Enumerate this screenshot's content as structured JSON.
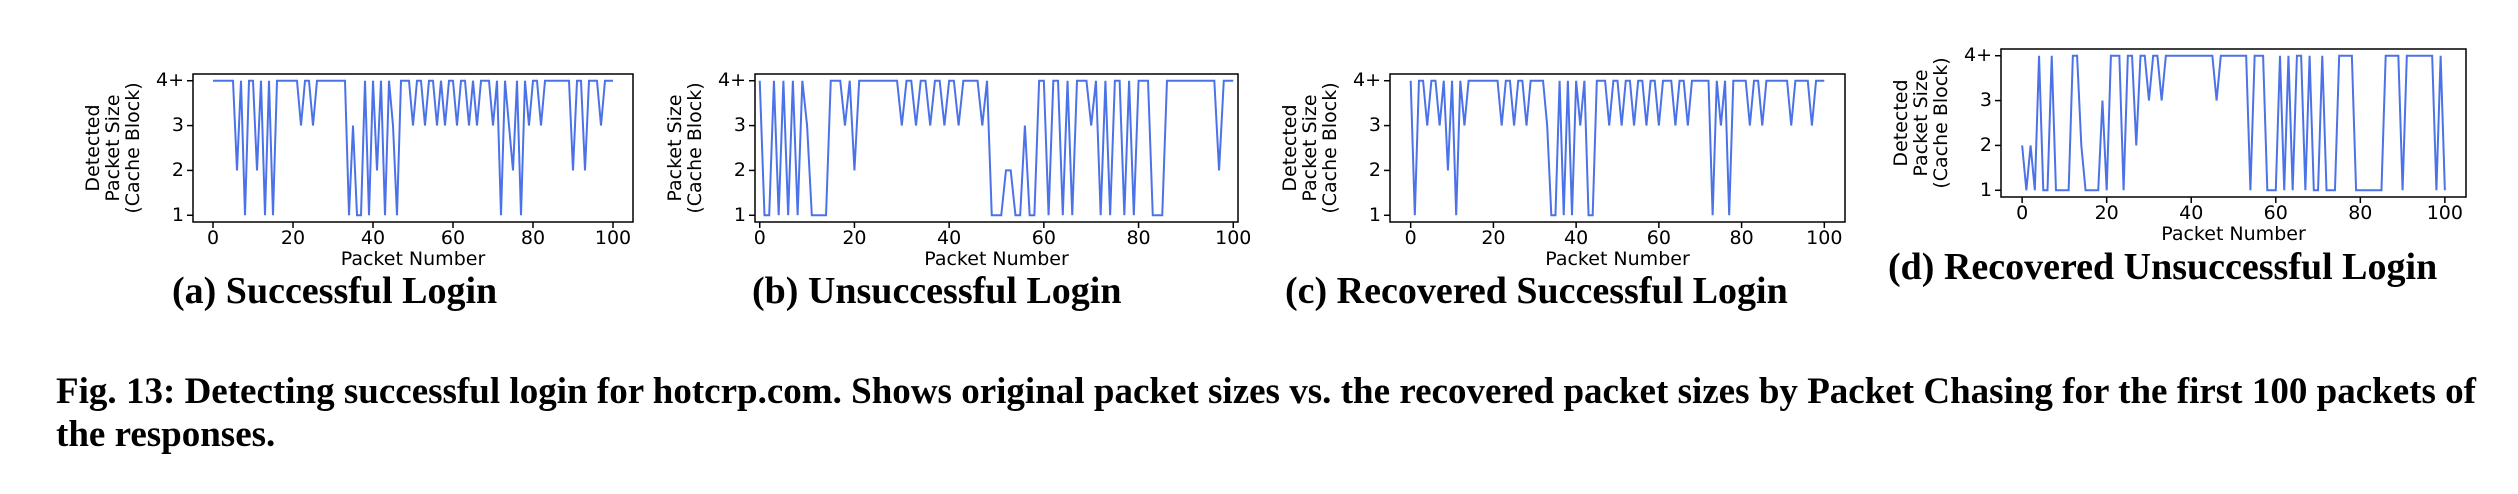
{
  "chart_data": [
    {
      "type": "line",
      "caption": "(a) Successful Login",
      "ylabel": [
        "Detected",
        "Packet Size",
        "(Cache Block)"
      ],
      "xlabel": "Packet Number",
      "color": "#4c72e8",
      "xlim": [
        -5,
        105
      ],
      "ylim": [
        0.85,
        4.15
      ],
      "xticks": [
        0,
        20,
        40,
        60,
        80,
        100
      ],
      "yticks": [
        1,
        2,
        3,
        {
          "value": 4,
          "label": "4+"
        }
      ],
      "x": [
        0,
        1,
        2,
        3,
        4,
        5,
        6,
        7,
        8,
        9,
        10,
        11,
        12,
        13,
        14,
        15,
        16,
        17,
        18,
        19,
        20,
        21,
        22,
        23,
        24,
        25,
        26,
        27,
        28,
        29,
        30,
        31,
        32,
        33,
        34,
        35,
        36,
        37,
        38,
        39,
        40,
        41,
        42,
        43,
        44,
        45,
        46,
        47,
        48,
        49,
        50,
        51,
        52,
        53,
        54,
        55,
        56,
        57,
        58,
        59,
        60,
        61,
        62,
        63,
        64,
        65,
        66,
        67,
        68,
        69,
        70,
        71,
        72,
        73,
        74,
        75,
        76,
        77,
        78,
        79,
        80,
        81,
        82,
        83,
        84,
        85,
        86,
        87,
        88,
        89,
        90,
        91,
        92,
        93,
        94,
        95,
        96,
        97,
        98,
        99,
        100
      ],
      "values": [
        4,
        4,
        4,
        4,
        4,
        4,
        2,
        4,
        1,
        4,
        4,
        2,
        4,
        1,
        4,
        1,
        4,
        4,
        4,
        4,
        4,
        4,
        3,
        4,
        4,
        3,
        4,
        4,
        4,
        4,
        4,
        4,
        4,
        4,
        1,
        3,
        1,
        1,
        4,
        1,
        4,
        2,
        4,
        1,
        4,
        3,
        1,
        4,
        4,
        4,
        3,
        4,
        4,
        3,
        4,
        4,
        3,
        4,
        3,
        4,
        4,
        3,
        4,
        4,
        3,
        4,
        3,
        4,
        4,
        4,
        3,
        4,
        1,
        4,
        3,
        2,
        4,
        1,
        4,
        3,
        4,
        4,
        3,
        4,
        4,
        4,
        4,
        4,
        4,
        4,
        2,
        4,
        4,
        2,
        4,
        4,
        4,
        3,
        4,
        4,
        4
      ]
    },
    {
      "type": "line",
      "caption": "(b) Unsuccessful Login",
      "ylabel": [
        "Packet Size",
        "(Cache Block)"
      ],
      "xlabel": "Packet Number",
      "color": "#4c72e8",
      "xlim": [
        -1,
        101
      ],
      "ylim": [
        0.85,
        4.15
      ],
      "xticks": [
        0,
        20,
        40,
        60,
        80,
        100
      ],
      "yticks": [
        1,
        2,
        3,
        {
          "value": 4,
          "label": "4+"
        }
      ],
      "x": [
        0,
        1,
        2,
        3,
        4,
        5,
        6,
        7,
        8,
        9,
        10,
        11,
        12,
        13,
        14,
        15,
        16,
        17,
        18,
        19,
        20,
        21,
        22,
        23,
        24,
        25,
        26,
        27,
        28,
        29,
        30,
        31,
        32,
        33,
        34,
        35,
        36,
        37,
        38,
        39,
        40,
        41,
        42,
        43,
        44,
        45,
        46,
        47,
        48,
        49,
        50,
        51,
        52,
        53,
        54,
        55,
        56,
        57,
        58,
        59,
        60,
        61,
        62,
        63,
        64,
        65,
        66,
        67,
        68,
        69,
        70,
        71,
        72,
        73,
        74,
        75,
        76,
        77,
        78,
        79,
        80,
        81,
        82,
        83,
        84,
        85,
        86,
        87,
        88,
        89,
        90,
        91,
        92,
        93,
        94,
        95,
        96,
        97,
        98,
        99,
        100
      ],
      "values": [
        4,
        1,
        1,
        4,
        1,
        4,
        1,
        4,
        1,
        4,
        3,
        1,
        1,
        1,
        1,
        4,
        4,
        4,
        3,
        4,
        2,
        4,
        4,
        4,
        4,
        4,
        4,
        4,
        4,
        4,
        3,
        4,
        4,
        3,
        4,
        4,
        3,
        4,
        4,
        3,
        4,
        4,
        3,
        4,
        4,
        4,
        4,
        3,
        4,
        1,
        1,
        1,
        2,
        2,
        1,
        1,
        3,
        1,
        1,
        4,
        4,
        1,
        4,
        4,
        1,
        4,
        1,
        4,
        4,
        4,
        3,
        4,
        1,
        4,
        1,
        4,
        4,
        1,
        4,
        1,
        4,
        4,
        4,
        1,
        1,
        1,
        4,
        4,
        4,
        4,
        4,
        4,
        4,
        4,
        4,
        4,
        4,
        2,
        4,
        4,
        4
      ]
    },
    {
      "type": "line",
      "caption": "(c) Recovered Successful Login",
      "ylabel": [
        "Detected",
        "Packet Size",
        "(Cache Block)"
      ],
      "xlabel": "Packet Number",
      "color": "#4c72e8",
      "xlim": [
        -5,
        105
      ],
      "ylim": [
        0.85,
        4.15
      ],
      "xticks": [
        0,
        20,
        40,
        60,
        80,
        100
      ],
      "yticks": [
        1,
        2,
        3,
        {
          "value": 4,
          "label": "4+"
        }
      ],
      "x": [
        0,
        1,
        2,
        3,
        4,
        5,
        6,
        7,
        8,
        9,
        10,
        11,
        12,
        13,
        14,
        15,
        16,
        17,
        18,
        19,
        20,
        21,
        22,
        23,
        24,
        25,
        26,
        27,
        28,
        29,
        30,
        31,
        32,
        33,
        34,
        35,
        36,
        37,
        38,
        39,
        40,
        41,
        42,
        43,
        44,
        45,
        46,
        47,
        48,
        49,
        50,
        51,
        52,
        53,
        54,
        55,
        56,
        57,
        58,
        59,
        60,
        61,
        62,
        63,
        64,
        65,
        66,
        67,
        68,
        69,
        70,
        71,
        72,
        73,
        74,
        75,
        76,
        77,
        78,
        79,
        80,
        81,
        82,
        83,
        84,
        85,
        86,
        87,
        88,
        89,
        90,
        91,
        92,
        93,
        94,
        95,
        96,
        97,
        98,
        99,
        100
      ],
      "values": [
        4,
        1,
        4,
        4,
        3,
        4,
        4,
        3,
        4,
        2,
        4,
        1,
        4,
        3,
        4,
        4,
        4,
        4,
        4,
        4,
        4,
        4,
        3,
        4,
        4,
        3,
        4,
        4,
        3,
        4,
        4,
        4,
        4,
        3,
        1,
        1,
        4,
        1,
        4,
        1,
        4,
        3,
        4,
        1,
        1,
        4,
        4,
        4,
        3,
        4,
        4,
        3,
        4,
        4,
        3,
        4,
        4,
        3,
        4,
        4,
        3,
        4,
        4,
        4,
        3,
        4,
        4,
        3,
        4,
        4,
        4,
        4,
        4,
        1,
        4,
        3,
        4,
        1,
        4,
        4,
        4,
        4,
        3,
        4,
        4,
        3,
        4,
        4,
        4,
        4,
        4,
        4,
        3,
        4,
        4,
        4,
        4,
        3,
        4,
        4,
        4
      ]
    },
    {
      "type": "line",
      "caption": "(d) Recovered Unsuccessful Login",
      "ylabel": [
        "Detected",
        "Packet Size",
        "(Cache Block)"
      ],
      "xlabel": "Packet Number",
      "color": "#4c72e8",
      "xlim": [
        -5,
        105
      ],
      "ylim": [
        0.85,
        4.15
      ],
      "xticks": [
        0,
        20,
        40,
        60,
        80,
        100
      ],
      "yticks": [
        1,
        2,
        3,
        {
          "value": 4,
          "label": "4+"
        }
      ],
      "x": [
        0,
        1,
        2,
        3,
        4,
        5,
        6,
        7,
        8,
        9,
        10,
        11,
        12,
        13,
        14,
        15,
        16,
        17,
        18,
        19,
        20,
        21,
        22,
        23,
        24,
        25,
        26,
        27,
        28,
        29,
        30,
        31,
        32,
        33,
        34,
        35,
        36,
        37,
        38,
        39,
        40,
        41,
        42,
        43,
        44,
        45,
        46,
        47,
        48,
        49,
        50,
        51,
        52,
        53,
        54,
        55,
        56,
        57,
        58,
        59,
        60,
        61,
        62,
        63,
        64,
        65,
        66,
        67,
        68,
        69,
        70,
        71,
        72,
        73,
        74,
        75,
        76,
        77,
        78,
        79,
        80,
        81,
        82,
        83,
        84,
        85,
        86,
        87,
        88,
        89,
        90,
        91,
        92,
        93,
        94,
        95,
        96,
        97,
        98,
        99,
        100
      ],
      "values": [
        2,
        1,
        2,
        1,
        4,
        1,
        1,
        4,
        1,
        1,
        1,
        1,
        4,
        4,
        2,
        1,
        1,
        1,
        1,
        3,
        1,
        4,
        4,
        4,
        1,
        4,
        4,
        2,
        4,
        4,
        3,
        4,
        4,
        3,
        4,
        4,
        4,
        4,
        4,
        4,
        4,
        4,
        4,
        4,
        4,
        4,
        3,
        4,
        4,
        4,
        4,
        4,
        4,
        4,
        1,
        4,
        4,
        4,
        1,
        1,
        1,
        4,
        1,
        4,
        1,
        4,
        4,
        1,
        4,
        1,
        1,
        4,
        1,
        1,
        1,
        4,
        4,
        4,
        4,
        1,
        1,
        1,
        1,
        1,
        1,
        1,
        4,
        4,
        4,
        4,
        1,
        4,
        4,
        4,
        4,
        4,
        4,
        4,
        1,
        4,
        1
      ]
    }
  ],
  "figure_caption": "Fig. 13: Detecting successful login for hotcrp.com. Shows original packet sizes vs. the recovered packet sizes by Packet Chasing for the first 100 packets of the responses."
}
